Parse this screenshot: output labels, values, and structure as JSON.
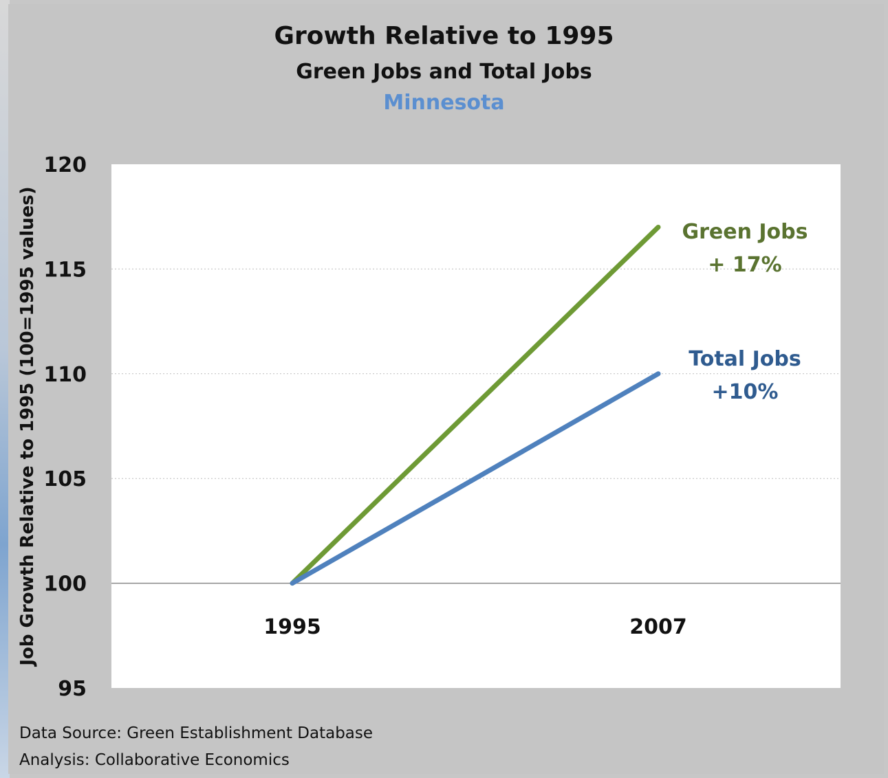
{
  "chart_data": {
    "type": "line",
    "title": "Growth Relative to 1995",
    "subtitle": "Green Jobs and Total Jobs",
    "region": "Minnesota",
    "ylabel": "Job Growth Relative to 1995 (100=1995 values)",
    "ylim": [
      95,
      120
    ],
    "yticks": [
      95,
      100,
      105,
      110,
      115,
      120
    ],
    "categories": [
      "1995",
      "2007"
    ],
    "series": [
      {
        "name": "Green Jobs",
        "values": [
          100,
          117
        ],
        "color": "#6e9a35",
        "label_lines": [
          "Green Jobs",
          "+ 17%"
        ],
        "label_color": "#5a7330"
      },
      {
        "name": "Total Jobs",
        "values": [
          100,
          110
        ],
        "color": "#4f81bd",
        "label_lines": [
          "Total Jobs",
          "+10%"
        ],
        "label_color": "#2f5b8f"
      }
    ],
    "grid": true,
    "legend": "inline-right"
  },
  "footer": {
    "source": "Data Source: Green  Establishment  Database",
    "analysis": "Analysis: Collaborative Economics"
  }
}
